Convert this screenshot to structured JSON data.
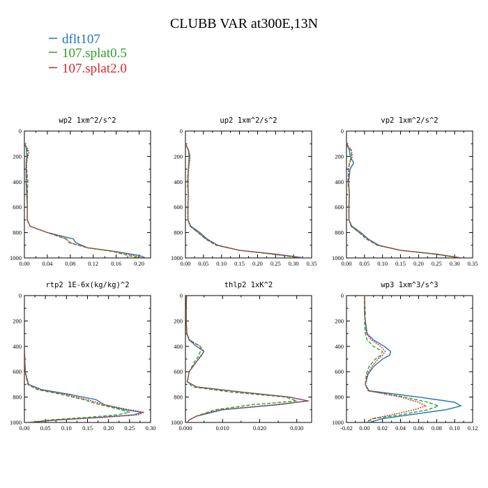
{
  "title": "CLUBB VAR at300E,13N",
  "legend": [
    {
      "name": "dflt107",
      "color": "#1f77b4",
      "dash": "solid"
    },
    {
      "name": "107.splat0.5",
      "color": "#2ca02c",
      "dash": "dash"
    },
    {
      "name": "107.splat2.0",
      "color": "#d62728",
      "dash": "dot"
    }
  ],
  "chart_data": [
    {
      "type": "line",
      "title": "wp2  1xm^2/s^2",
      "xlim": [
        0,
        0.22
      ],
      "xticks": [
        0,
        0.04,
        0.08,
        0.12,
        0.16,
        0.2
      ],
      "xtick_labels": [
        "0.00",
        "0.04",
        "0.08",
        "0.12",
        "0.16",
        "0.20"
      ],
      "ylim": [
        0,
        1000
      ],
      "yticks": [
        0,
        200,
        400,
        600,
        800,
        1000
      ],
      "ytick_labels": [
        "0",
        "200",
        "400",
        "600",
        "800",
        "1000"
      ],
      "y": [
        100,
        130,
        170,
        200,
        250,
        300,
        400,
        500,
        600,
        700,
        750,
        800,
        850,
        880,
        920,
        950,
        980,
        1000
      ],
      "series": [
        {
          "name": "dflt107",
          "values": [
            0.0,
            0.003,
            0.004,
            0.004,
            0.003,
            0.003,
            0.003,
            0.004,
            0.005,
            0.005,
            0.01,
            0.04,
            0.085,
            0.09,
            0.11,
            0.16,
            0.2,
            0.212
          ]
        },
        {
          "name": "107.splat0.5",
          "values": [
            0.0,
            0.004,
            0.006,
            0.005,
            0.003,
            0.004,
            0.006,
            0.005,
            0.005,
            0.005,
            0.01,
            0.04,
            0.072,
            0.078,
            0.11,
            0.155,
            0.18,
            0.2
          ]
        },
        {
          "name": "107.splat2.0",
          "values": [
            0.0,
            0.005,
            0.008,
            0.006,
            0.004,
            0.004,
            0.004,
            0.005,
            0.005,
            0.005,
            0.01,
            0.04,
            0.074,
            0.08,
            0.11,
            0.16,
            0.19,
            0.205
          ]
        }
      ]
    },
    {
      "type": "line",
      "title": "up2  1xm^2/s^2",
      "xlim": [
        0,
        0.35
      ],
      "xticks": [
        0,
        0.05,
        0.1,
        0.15,
        0.2,
        0.25,
        0.3,
        0.35
      ],
      "xtick_labels": [
        "0.00",
        "0.05",
        "0.10",
        "0.15",
        "0.20",
        "0.25",
        "0.30",
        "0.35"
      ],
      "ylim": [
        0,
        1000
      ],
      "yticks": [
        0,
        200,
        400,
        600,
        800,
        1000
      ],
      "ytick_labels": [
        "0",
        "200",
        "400",
        "600",
        "800",
        "1000"
      ],
      "y": [
        100,
        150,
        200,
        300,
        400,
        500,
        600,
        700,
        750,
        800,
        850,
        900,
        940,
        970,
        1000
      ],
      "series": [
        {
          "name": "dflt107",
          "values": [
            0.0,
            0.008,
            0.01,
            0.008,
            0.007,
            0.008,
            0.007,
            0.007,
            0.015,
            0.04,
            0.06,
            0.09,
            0.15,
            0.25,
            0.33
          ]
        },
        {
          "name": "107.splat0.5",
          "values": [
            0.0,
            0.008,
            0.012,
            0.008,
            0.005,
            0.008,
            0.006,
            0.007,
            0.013,
            0.035,
            0.055,
            0.085,
            0.15,
            0.24,
            0.32
          ]
        },
        {
          "name": "107.splat2.0",
          "values": [
            0.0,
            0.009,
            0.013,
            0.009,
            0.007,
            0.008,
            0.007,
            0.007,
            0.013,
            0.036,
            0.056,
            0.086,
            0.15,
            0.245,
            0.325
          ]
        }
      ]
    },
    {
      "type": "line",
      "title": "vp2  1xm^2/s^2",
      "xlim": [
        0,
        0.35
      ],
      "xticks": [
        0,
        0.05,
        0.1,
        0.15,
        0.2,
        0.25,
        0.3,
        0.35
      ],
      "xtick_labels": [
        "0.00",
        "0.05",
        "0.10",
        "0.15",
        "0.20",
        "0.25",
        "0.30",
        "0.35"
      ],
      "ylim": [
        0,
        1000
      ],
      "yticks": [
        0,
        200,
        400,
        600,
        800,
        1000
      ],
      "ytick_labels": [
        "0",
        "200",
        "400",
        "600",
        "800",
        "1000"
      ],
      "y": [
        100,
        150,
        200,
        250,
        300,
        400,
        500,
        600,
        700,
        750,
        800,
        850,
        900,
        940,
        970,
        1000
      ],
      "series": [
        {
          "name": "dflt107",
          "values": [
            0.0,
            0.008,
            0.01,
            0.02,
            0.01,
            0.006,
            0.008,
            0.007,
            0.007,
            0.015,
            0.04,
            0.06,
            0.09,
            0.15,
            0.25,
            0.32
          ]
        },
        {
          "name": "107.splat0.5",
          "values": [
            0.0,
            0.012,
            0.014,
            0.008,
            0.006,
            0.004,
            0.008,
            0.006,
            0.007,
            0.013,
            0.035,
            0.055,
            0.085,
            0.15,
            0.245,
            0.315
          ]
        },
        {
          "name": "107.splat2.0",
          "values": [
            0.0,
            0.014,
            0.016,
            0.009,
            0.006,
            0.006,
            0.008,
            0.007,
            0.007,
            0.013,
            0.036,
            0.056,
            0.086,
            0.15,
            0.245,
            0.318
          ]
        }
      ]
    },
    {
      "type": "line",
      "title": "rtp2  1E-6x(kg/kg)^2",
      "xlim": [
        0,
        0.3
      ],
      "xticks": [
        0,
        0.05,
        0.1,
        0.15,
        0.2,
        0.25,
        0.3
      ],
      "xtick_labels": [
        "0.00",
        "0.05",
        "0.10",
        "0.15",
        "0.20",
        "0.25",
        "0.30"
      ],
      "ylim": [
        0,
        1000
      ],
      "yticks": [
        0,
        200,
        400,
        600,
        800,
        1000
      ],
      "ytick_labels": [
        "0",
        "200",
        "400",
        "600",
        "800",
        "1000"
      ],
      "y": [
        400,
        500,
        600,
        700,
        740,
        780,
        820,
        860,
        900,
        920,
        940,
        960,
        980,
        1000
      ],
      "series": [
        {
          "name": "dflt107",
          "values": [
            0.0,
            0.001,
            0.002,
            0.01,
            0.04,
            0.11,
            0.17,
            0.19,
            0.24,
            0.28,
            0.26,
            0.18,
            0.08,
            0.01
          ]
        },
        {
          "name": "107.splat0.5",
          "values": [
            0.0,
            0.001,
            0.002,
            0.008,
            0.03,
            0.09,
            0.14,
            0.18,
            0.23,
            0.25,
            0.22,
            0.15,
            0.06,
            0.01
          ]
        },
        {
          "name": "107.splat2.0",
          "values": [
            0.0,
            0.001,
            0.002,
            0.009,
            0.035,
            0.1,
            0.15,
            0.19,
            0.25,
            0.285,
            0.27,
            0.19,
            0.07,
            0.01
          ]
        }
      ]
    },
    {
      "type": "line",
      "title": "thlp2  1xK^2",
      "xlim": [
        0,
        0.034
      ],
      "xticks": [
        0,
        0.01,
        0.02,
        0.03
      ],
      "xtick_labels": [
        "0.000",
        "0.010",
        "0.020",
        "0.030"
      ],
      "ylim": [
        0,
        1000
      ],
      "yticks": [
        0,
        200,
        400,
        600,
        800,
        1000
      ],
      "ytick_labels": [
        "0",
        "200",
        "400",
        "600",
        "800",
        "1000"
      ],
      "y": [
        0,
        100,
        200,
        300,
        350,
        400,
        440,
        480,
        520,
        600,
        680,
        720,
        760,
        800,
        830,
        860,
        900,
        950,
        980,
        1000
      ],
      "series": [
        {
          "name": "dflt107",
          "values": [
            0.0003,
            0.0002,
            0.0002,
            0.0004,
            0.001,
            0.003,
            0.005,
            0.004,
            0.003,
            0.001,
            0.0005,
            0.003,
            0.015,
            0.028,
            0.033,
            0.025,
            0.01,
            0.003,
            0.001,
            0.0005
          ]
        },
        {
          "name": "107.splat0.5",
          "values": [
            0.0003,
            0.0002,
            0.0002,
            0.0003,
            0.001,
            0.004,
            0.004,
            0.0035,
            0.0025,
            0.001,
            0.0005,
            0.002,
            0.012,
            0.027,
            0.03,
            0.018,
            0.008,
            0.003,
            0.001,
            0.0005
          ]
        },
        {
          "name": "107.splat2.0",
          "values": [
            0.0003,
            0.0002,
            0.0002,
            0.0004,
            0.0012,
            0.004,
            0.005,
            0.0042,
            0.003,
            0.001,
            0.0005,
            0.003,
            0.015,
            0.028,
            0.0332,
            0.024,
            0.009,
            0.003,
            0.001,
            0.0005
          ]
        }
      ]
    },
    {
      "type": "line",
      "title": "wp3  1xm^3/s^3",
      "xlim": [
        -0.02,
        0.12
      ],
      "xticks": [
        -0.02,
        0,
        0.02,
        0.04,
        0.06,
        0.08,
        0.1,
        0.12
      ],
      "xtick_labels": [
        "-0.02",
        "0.00",
        "0.02",
        "0.04",
        "0.06",
        "0.08",
        "0.10",
        "0.12"
      ],
      "ylim": [
        0,
        1000
      ],
      "yticks": [
        0,
        200,
        400,
        600,
        800,
        1000
      ],
      "ytick_labels": [
        "0",
        "200",
        "400",
        "600",
        "800",
        "1000"
      ],
      "y": [
        0,
        150,
        200,
        300,
        350,
        400,
        440,
        470,
        500,
        560,
        620,
        700,
        750,
        800,
        840,
        870,
        900,
        940,
        970,
        1000
      ],
      "series": [
        {
          "name": "dflt107",
          "values": [
            0.0,
            0.0,
            0.001,
            0.003,
            0.01,
            0.022,
            0.029,
            0.028,
            0.02,
            0.01,
            0.004,
            0.001,
            0.005,
            0.06,
            0.1,
            0.107,
            0.09,
            0.05,
            0.02,
            0.005
          ]
        },
        {
          "name": "107.splat0.5",
          "values": [
            0.0,
            0.001,
            0.0,
            0.001,
            0.003,
            0.01,
            0.02,
            0.018,
            0.012,
            0.005,
            0.002,
            0.001,
            0.004,
            0.045,
            0.07,
            0.082,
            0.07,
            0.04,
            0.01,
            0.002
          ]
        },
        {
          "name": "107.splat2.0",
          "values": [
            0.0,
            0.0,
            0.001,
            0.002,
            0.008,
            0.018,
            0.023,
            0.02,
            0.015,
            0.008,
            0.003,
            0.001,
            0.004,
            0.04,
            0.06,
            0.068,
            0.055,
            0.03,
            0.008,
            0.002
          ]
        }
      ]
    }
  ]
}
